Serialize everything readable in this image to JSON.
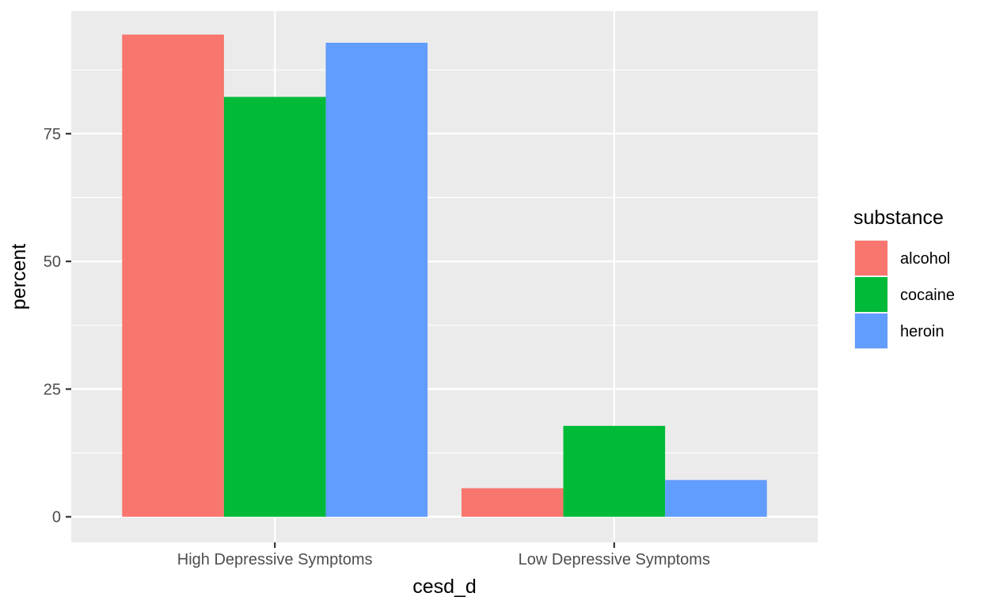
{
  "chart_data": {
    "type": "bar",
    "xlabel": "cesd_d",
    "ylabel": "percent",
    "categories": [
      "High Depressive Symptoms",
      "Low Depressive Symptoms"
    ],
    "series": [
      {
        "name": "alcohol",
        "color": "#F8766D",
        "values": [
          94.4,
          5.6
        ]
      },
      {
        "name": "cocaine",
        "color": "#00BA38",
        "values": [
          82.2,
          17.8
        ]
      },
      {
        "name": "heroin",
        "color": "#619CFF",
        "values": [
          92.8,
          7.2
        ]
      }
    ],
    "ylim": [
      -5,
      99
    ],
    "yticks": [
      0,
      25,
      50,
      75
    ],
    "ytick_labels": [
      "0",
      "25",
      "50",
      "75"
    ],
    "legend": {
      "title": "substance",
      "position": "right"
    },
    "grid": true,
    "panel_background": "#EBEBEB",
    "grid_color": "#FFFFFF"
  }
}
